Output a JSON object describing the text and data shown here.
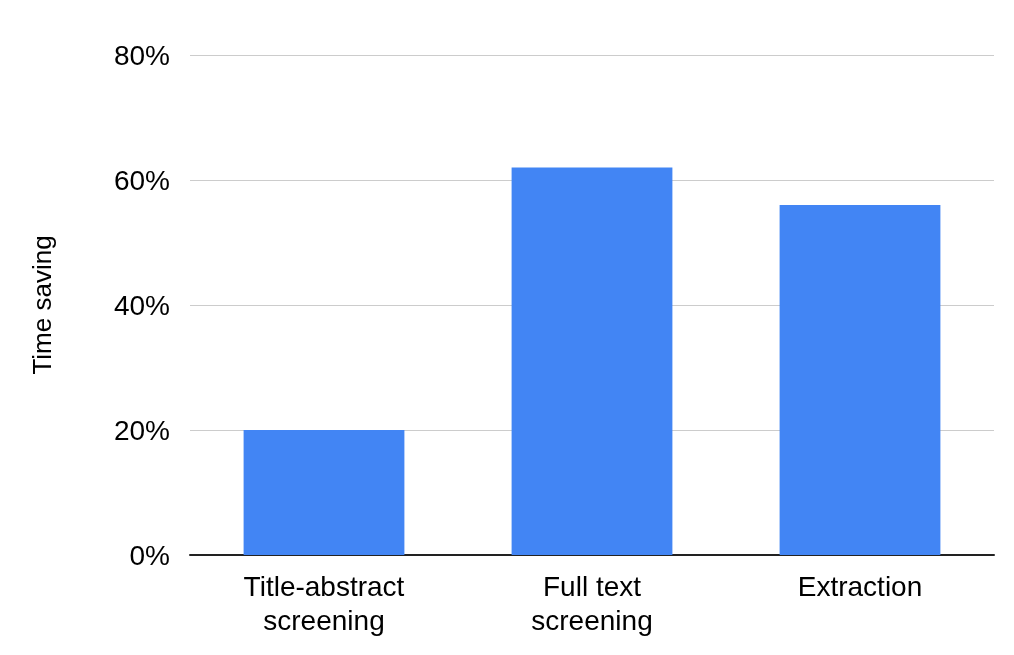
{
  "chart_data": {
    "type": "bar",
    "ylabel": "Time saving",
    "categories": [
      "Title-abstract\nscreening",
      "Full text\nscreening",
      "Extraction"
    ],
    "values": [
      20,
      62,
      56
    ],
    "color": "#4285f4",
    "ylim": [
      0,
      80
    ],
    "yticks": [
      {
        "value": 0,
        "label": "0%"
      },
      {
        "value": 20,
        "label": "20%"
      },
      {
        "value": 40,
        "label": "40%"
      },
      {
        "value": 60,
        "label": "60%"
      },
      {
        "value": 80,
        "label": "80%"
      }
    ],
    "grid": "y"
  }
}
